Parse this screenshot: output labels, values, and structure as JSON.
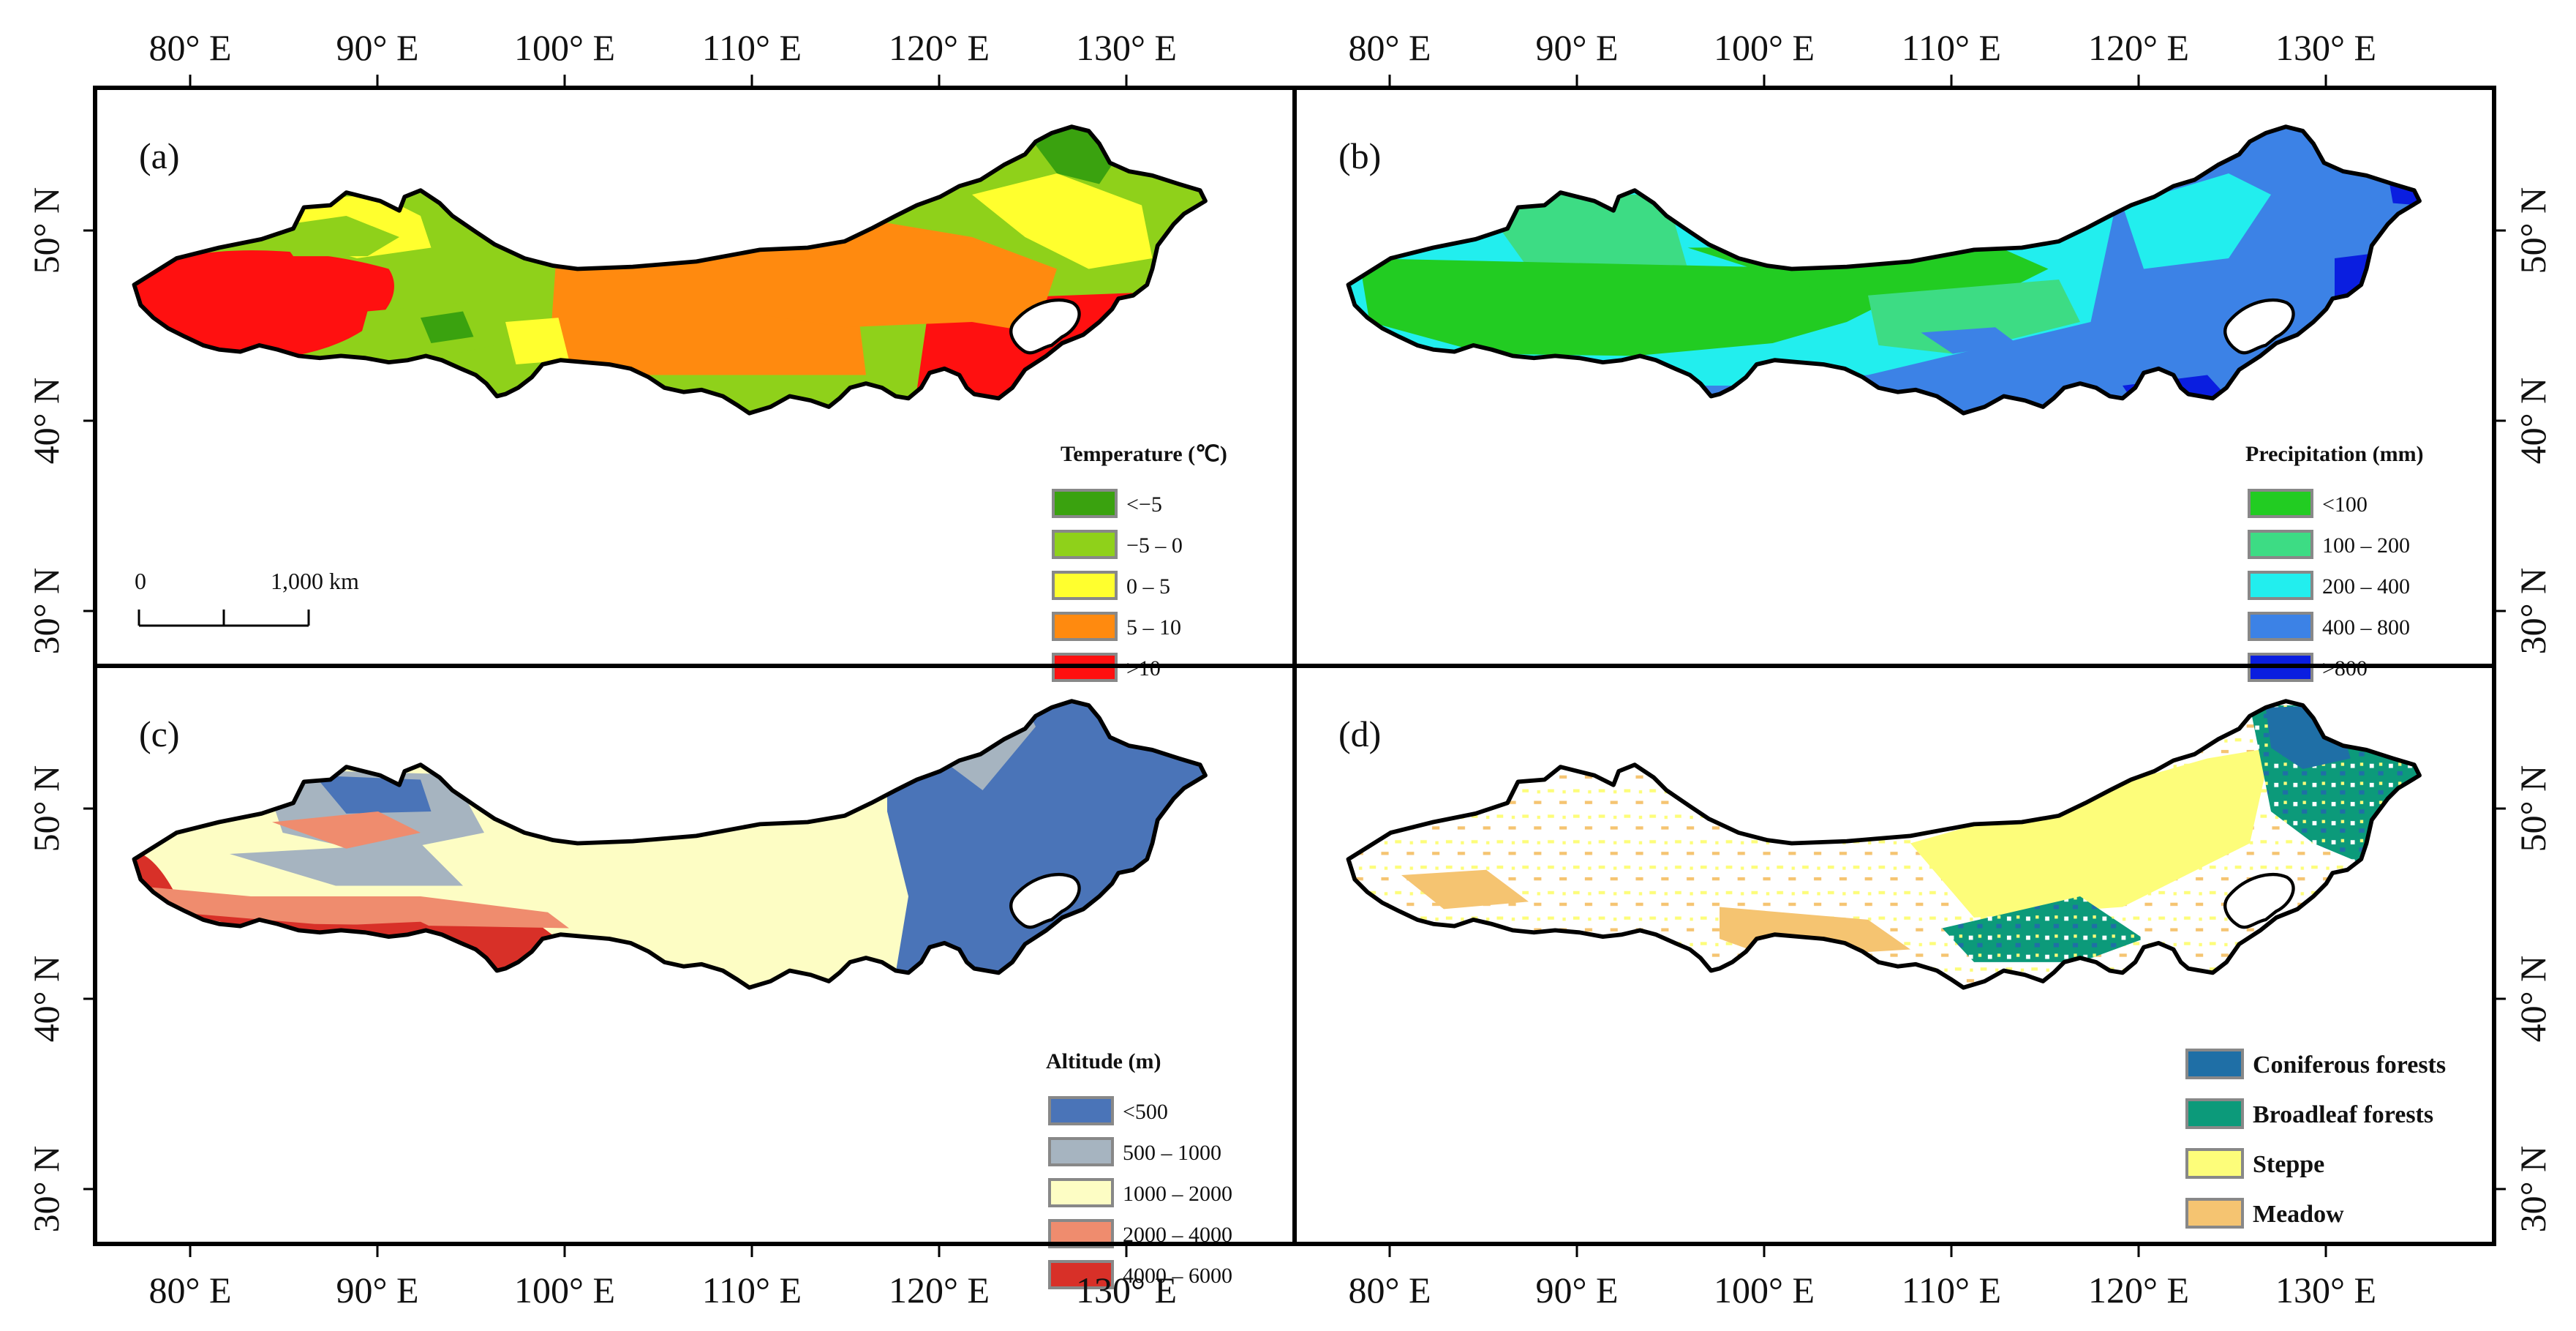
{
  "axes": {
    "lon_ticks": [
      "80° E",
      "90° E",
      "100° E",
      "110° E",
      "120° E",
      "130° E"
    ],
    "lat_ticks": [
      "50° N",
      "40° N",
      "30° N"
    ]
  },
  "panels": {
    "a": {
      "label": "(a)",
      "legend_title": "Temperature (℃)",
      "classes": [
        {
          "label": "<−5",
          "color": "#3aa20f"
        },
        {
          "label": "−5 – 0",
          "color": "#8fd11a"
        },
        {
          "label": "0 – 5",
          "color": "#ffff2e"
        },
        {
          "label": "5 – 10",
          "color": "#ff8a0f"
        },
        {
          "label": ">10",
          "color": "#ff1010"
        }
      ],
      "scale_bar": {
        "start": "0",
        "end": "1,000 km"
      }
    },
    "b": {
      "label": "(b)",
      "legend_title": "Precipitation (mm)",
      "classes": [
        {
          "label": "<100",
          "color": "#22cc22"
        },
        {
          "label": "100 – 200",
          "color": "#3ddc84"
        },
        {
          "label": "200 – 400",
          "color": "#22eeee"
        },
        {
          "label": "400 – 800",
          "color": "#3c82e6"
        },
        {
          "label": ">800",
          "color": "#0a1ee0"
        }
      ]
    },
    "c": {
      "label": "(c)",
      "legend_title": "Altitude (m)",
      "classes": [
        {
          "label": "<500",
          "color": "#4a74b8"
        },
        {
          "label": "500 – 1000",
          "color": "#a6b4c0"
        },
        {
          "label": "1000 – 2000",
          "color": "#fdfdc4"
        },
        {
          "label": "2000 – 4000",
          "color": "#ef8c6e"
        },
        {
          "label": "4000 – 6000",
          "color": "#d83028"
        }
      ]
    },
    "d": {
      "label": "(d)",
      "classes": [
        {
          "label": "Coniferous forests",
          "color": "#1f6fa6"
        },
        {
          "label": "Broadleaf forests",
          "color": "#0c9a7a"
        },
        {
          "label": "Steppe",
          "color": "#fdfd7a"
        },
        {
          "label": "Meadow",
          "color": "#f5c471"
        }
      ]
    }
  }
}
